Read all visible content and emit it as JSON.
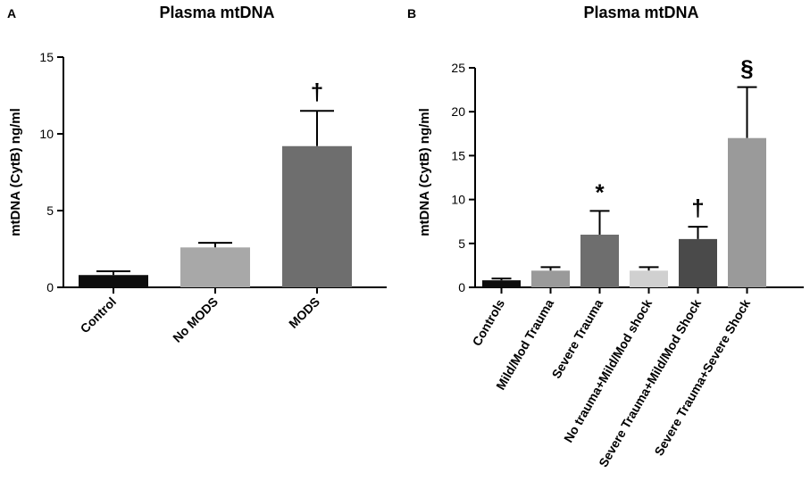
{
  "chart_data": [
    {
      "type": "bar",
      "panel_label": "A",
      "title": "Plasma mtDNA",
      "xlabel": "",
      "ylabel": "mtDNA (CytB) ng/ml",
      "ylim": [
        0,
        15
      ],
      "yticks": [
        "0",
        "5",
        "10",
        "15"
      ],
      "grid": false,
      "categories": [
        "Control",
        "No MODS",
        "MODS"
      ],
      "values": [
        0.8,
        2.6,
        9.2
      ],
      "error_upper": [
        1.05,
        2.9,
        11.5
      ],
      "colors": [
        "#0d0d0d",
        "#a8a8a8",
        "#6e6e6e"
      ],
      "annotations": [
        "",
        "",
        "†"
      ]
    },
    {
      "type": "bar",
      "panel_label": "B",
      "title": "Plasma mtDNA",
      "xlabel": "",
      "ylabel": "mtDNA (CytB) ng/ml",
      "ylim": [
        0,
        25
      ],
      "yticks": [
        "0",
        "5",
        "10",
        "15",
        "20",
        "25"
      ],
      "grid": false,
      "categories": [
        "Controls",
        "Mild/Mod Trauma",
        "Severe Trauma",
        "No trauma+Mild/Mod shock",
        "Severe Trauma+Mild/Mod Shock",
        "Severe Trauma+Severe Shock"
      ],
      "values": [
        0.8,
        1.9,
        6.0,
        1.9,
        5.5,
        17.0
      ],
      "error_upper": [
        1.0,
        2.3,
        8.7,
        2.3,
        6.9,
        22.8
      ],
      "colors": [
        "#0d0d0d",
        "#9a9a9a",
        "#6e6e6e",
        "#d0d0d0",
        "#4a4a4a",
        "#9a9a9a"
      ],
      "annotations": [
        "",
        "",
        "*",
        "",
        "†",
        "§"
      ]
    }
  ]
}
